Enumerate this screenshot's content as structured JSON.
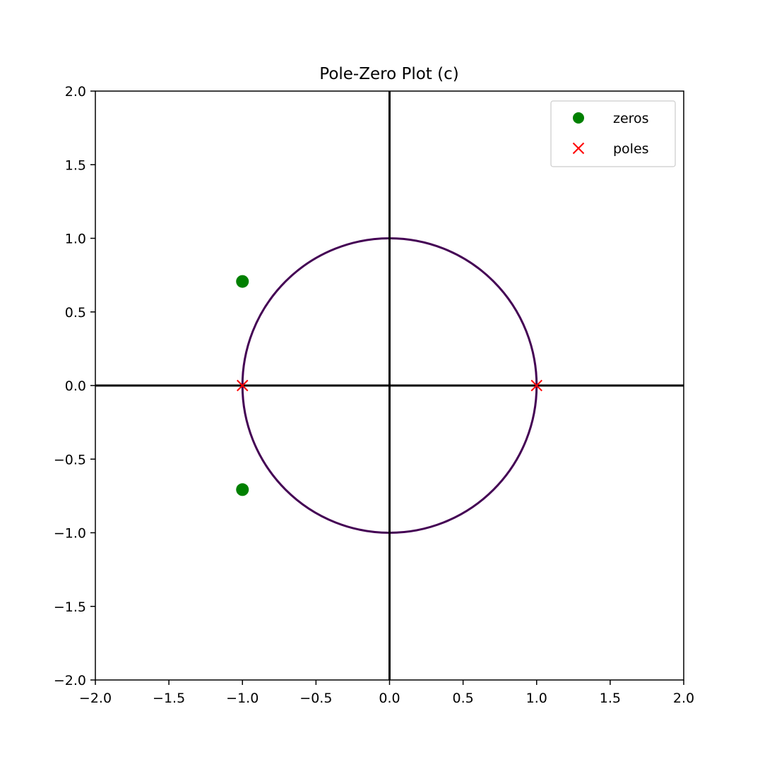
{
  "chart_data": {
    "type": "scatter",
    "title": "Pole-Zero Plot (c)",
    "xlabel": "",
    "ylabel": "",
    "xlim": [
      -2.0,
      2.0
    ],
    "ylim": [
      -2.0,
      2.0
    ],
    "x_ticks": [
      -2.0,
      -1.5,
      -1.0,
      -0.5,
      0.0,
      0.5,
      1.0,
      1.5,
      2.0
    ],
    "x_tick_labels": [
      "−2.0",
      "−1.5",
      "−1.0",
      "−0.5",
      "0.0",
      "0.5",
      "1.0",
      "1.5",
      "2.0"
    ],
    "y_ticks": [
      -2.0,
      -1.5,
      -1.0,
      -0.5,
      0.0,
      0.5,
      1.0,
      1.5,
      2.0
    ],
    "y_tick_labels": [
      "−2.0",
      "−1.5",
      "−1.0",
      "−0.5",
      "0.0",
      "0.5",
      "1.0",
      "1.5",
      "2.0"
    ],
    "grid": false,
    "legend_position": "top-right",
    "unit_circle": {
      "center": [
        0,
        0
      ],
      "radius": 1.0,
      "color": "#440154"
    },
    "axes_lines_color": "#000000",
    "series": [
      {
        "name": "zeros",
        "marker": "circle",
        "color": "#008000",
        "points": [
          {
            "x": -1.0,
            "y": 0.707
          },
          {
            "x": -1.0,
            "y": -0.707
          }
        ]
      },
      {
        "name": "poles",
        "marker": "x",
        "color": "#ff0000",
        "points": [
          {
            "x": -1.0,
            "y": 0.0
          },
          {
            "x": 1.0,
            "y": 0.0
          }
        ]
      }
    ]
  }
}
